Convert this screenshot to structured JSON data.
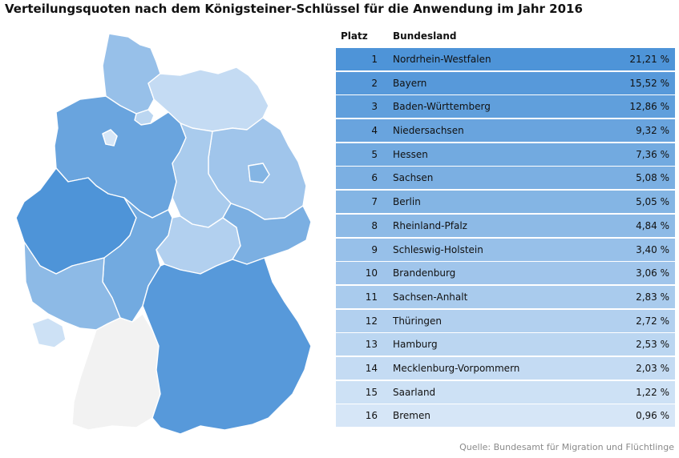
{
  "chart_data": {
    "type": "table",
    "title": "Verteilungsquoten nach dem Königsteiner-Schlüssel für die Anwendung im Jahr 2016",
    "columns": [
      "Platz",
      "Bundesland",
      ""
    ],
    "rows": [
      {
        "rank": "1",
        "state": "Nordrhein-Westfalen",
        "value": 21.21,
        "label": "21,21 %"
      },
      {
        "rank": "2",
        "state": "Bayern",
        "value": 15.52,
        "label": "15,52 %"
      },
      {
        "rank": "3",
        "state": "Baden-Württemberg",
        "value": 12.86,
        "label": "12,86 %"
      },
      {
        "rank": "4",
        "state": "Niedersachsen",
        "value": 9.32,
        "label": "9,32 %"
      },
      {
        "rank": "5",
        "state": "Hessen",
        "value": 7.36,
        "label": "7,36 %"
      },
      {
        "rank": "6",
        "state": "Sachsen",
        "value": 5.08,
        "label": "5,08 %"
      },
      {
        "rank": "7",
        "state": "Berlin",
        "value": 5.05,
        "label": "5,05 %"
      },
      {
        "rank": "8",
        "state": "Rheinland-Pfalz",
        "value": 4.84,
        "label": "4,84 %"
      },
      {
        "rank": "9",
        "state": "Schleswig-Holstein",
        "value": 3.4,
        "label": "3,40 %"
      },
      {
        "rank": "10",
        "state": "Brandenburg",
        "value": 3.06,
        "label": "3,06 %"
      },
      {
        "rank": "11",
        "state": "Sachsen-Anhalt",
        "value": 2.83,
        "label": "2,83 %"
      },
      {
        "rank": "12",
        "state": "Thüringen",
        "value": 2.72,
        "label": "2,72 %"
      },
      {
        "rank": "13",
        "state": "Hamburg",
        "value": 2.53,
        "label": "2,53 %"
      },
      {
        "rank": "14",
        "state": "Mecklenburg-Vorpommern",
        "value": 2.03,
        "label": "2,03 %"
      },
      {
        "rank": "15",
        "state": "Saarland",
        "value": 1.22,
        "label": "1,22 %"
      },
      {
        "rank": "16",
        "state": "Bremen",
        "value": 0.96,
        "label": "0,96 %"
      }
    ],
    "map_note": "Choropleth map of Germany, states shaded by quota; Baden-Württemberg shown in light grey",
    "colors": {
      "highest": "#4e94d8",
      "lowest": "#d6e6f7",
      "map_highlight_grey": "#f2f2f2"
    },
    "source": "Quelle: Bundesamt für Migration und Flüchtlinge"
  }
}
